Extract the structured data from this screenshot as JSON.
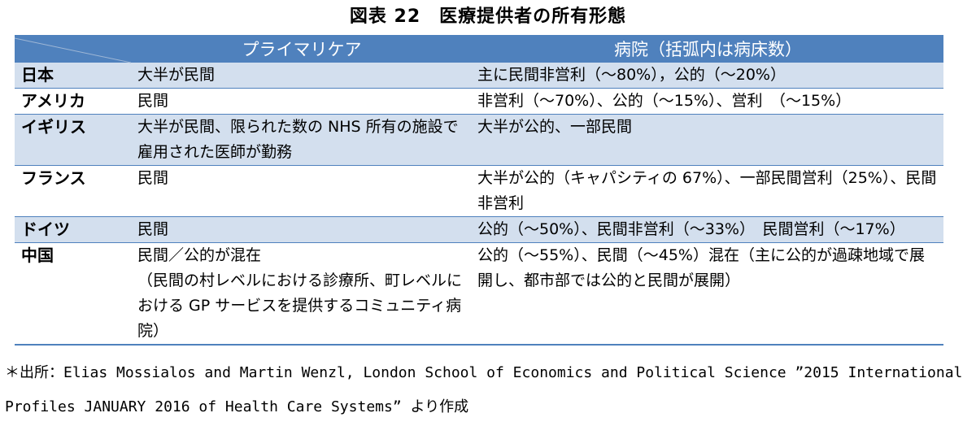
{
  "title": "図表 22　医療提供者の所有形態",
  "table": {
    "headers": {
      "corner": "",
      "primary": "プライマリケア",
      "hospital": "病院（括弧内は病床数）"
    },
    "rows": [
      {
        "country": "日本",
        "primary": "大半が民間",
        "hospital": "主に民間非営利（〜80%），公的（〜20%）"
      },
      {
        "country": "アメリカ",
        "primary": "民間",
        "hospital": "非営利（〜70%）、公的（〜15%）、営利　（〜15%）"
      },
      {
        "country": "イギリス",
        "primary": "大半が民間、限られた数の NHS 所有の施設で雇用された医師が勤務",
        "hospital": "大半が公的、一部民間"
      },
      {
        "country": "フランス",
        "primary": "民間",
        "hospital": "大半が公的（キャパシティの 67%）、一部民間営利（25%）、民間非営利"
      },
      {
        "country": "ドイツ",
        "primary": "民間",
        "hospital": "公的（〜50%）、民間非営利（〜33%）　民間営利（〜17%）"
      },
      {
        "country": "中国",
        "primary": "民間／公的が混在\n（民間の村レベルにおける診療所、町レベルにおける GP サービスを提供するコミュニティ病院）",
        "hospital": "公的（〜55%）、民間（〜45%）混在（主に公的が過疎地域で展開し、都市部では公的と民間が展開）"
      }
    ]
  },
  "source": "＊出所：Elias Mossialos and Martin Wenzl, London School of Economics and Political Science ”2015 International Profiles JANUARY 2016 of Health Care Systems” より作成",
  "colors": {
    "header_bg": "#4f81bd",
    "shaded_row": "#d3dfee",
    "border": "#4f81bd"
  }
}
